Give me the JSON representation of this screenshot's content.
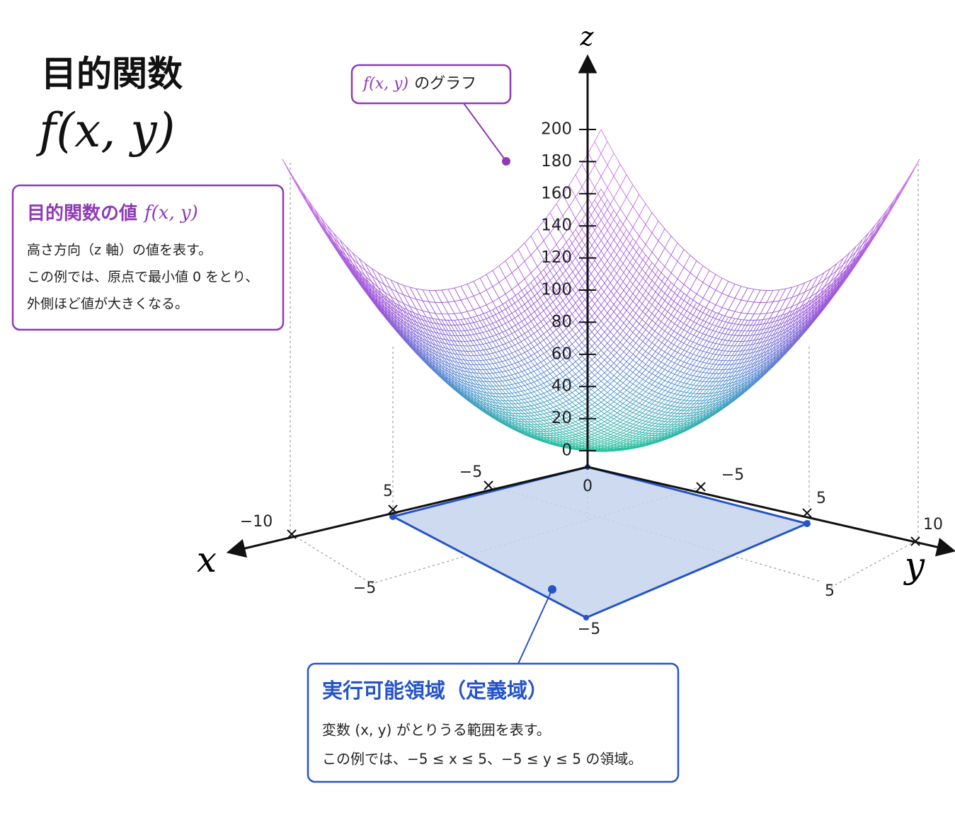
{
  "title": {
    "main": "目的関数",
    "formula": "f(x, y)"
  },
  "graph_callout": {
    "formula": "f(x, y)",
    "text": "のグラフ"
  },
  "objective_box": {
    "heading": "目的関数の値",
    "formula": "f(x, y)",
    "lines": [
      "高さ方向（z 軸）の値を表す。",
      "この例では、原点で最小値 0 をとり、",
      "外側ほど値が大きくなる。"
    ]
  },
  "feasible_box": {
    "heading": "実行可能領域（定義域）",
    "lines": [
      "変数 (x, y) がとりうる範囲を表す。",
      "この例では、−5 ≤ x ≤ 5、−5 ≤ y ≤ 5 の領域。"
    ]
  },
  "axes": {
    "x": "x",
    "y": "y",
    "z": "z"
  },
  "z_ticks": [
    "200",
    "180",
    "160",
    "140",
    "120",
    "100",
    "80",
    "60",
    "40",
    "20",
    "0"
  ],
  "floor_labels": [
    "−5",
    "0",
    "−5",
    "5",
    "5",
    "−10",
    "10",
    "−5",
    "5",
    "−5"
  ]
}
